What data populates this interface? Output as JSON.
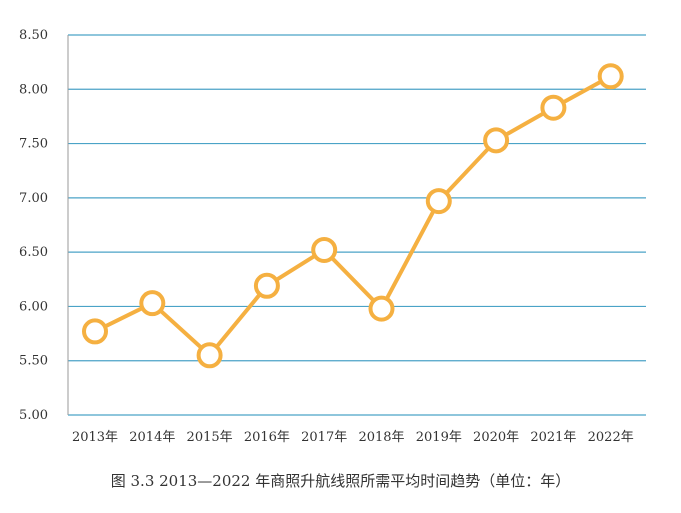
{
  "chart_data": {
    "type": "line",
    "categories": [
      "2013年",
      "2014年",
      "2015年",
      "2016年",
      "2017年",
      "2018年",
      "2019年",
      "2020年",
      "2021年",
      "2022年"
    ],
    "values": [
      5.77,
      6.03,
      5.55,
      6.19,
      6.52,
      5.98,
      6.97,
      7.53,
      7.83,
      8.12
    ],
    "yticks": [
      "5.00",
      "5.50",
      "6.00",
      "6.50",
      "7.00",
      "7.50",
      "8.00",
      "8.50"
    ],
    "ylim": [
      5.0,
      8.5
    ],
    "grid": true,
    "colors": {
      "line": "#F5B041",
      "grid": "#4BA3C7",
      "marker_fill": "#ffffff"
    }
  },
  "caption": "图 3.3   2013—2022 年商照升航线照所需平均时间趋势（单位：年）"
}
